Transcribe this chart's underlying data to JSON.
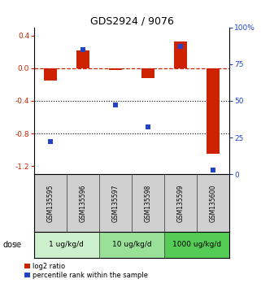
{
  "title": "GDS2924 / 9076",
  "samples": [
    "GSM135595",
    "GSM135596",
    "GSM135597",
    "GSM135598",
    "GSM135599",
    "GSM135600"
  ],
  "log2_ratio": [
    -0.15,
    0.22,
    -0.02,
    -0.12,
    0.33,
    -1.05
  ],
  "percentile_rank": [
    22,
    85,
    47,
    32,
    87,
    3
  ],
  "dose_groups": [
    {
      "label": "1 ug/kg/d",
      "color": "#ccf0cc"
    },
    {
      "label": "10 ug/kg/d",
      "color": "#99e099"
    },
    {
      "label": "1000 ug/kg/d",
      "color": "#55cc55"
    }
  ],
  "bar_color_red": "#cc2200",
  "bar_color_blue": "#2244cc",
  "left_ylim": [
    -1.3,
    0.5
  ],
  "right_ylim": [
    0,
    100
  ],
  "left_yticks": [
    -1.2,
    -0.8,
    -0.4,
    0.0,
    0.4
  ],
  "right_yticks": [
    0,
    25,
    50,
    75,
    100
  ],
  "right_yticklabels": [
    "0",
    "25",
    "50",
    "75",
    "100%"
  ],
  "hline_y": 0.0,
  "dotted_lines": [
    -0.4,
    -0.8
  ],
  "legend_red": "log2 ratio",
  "legend_blue": "percentile rank within the sample",
  "dose_label": "dose",
  "bar_width": 0.4,
  "marker_size": 4
}
